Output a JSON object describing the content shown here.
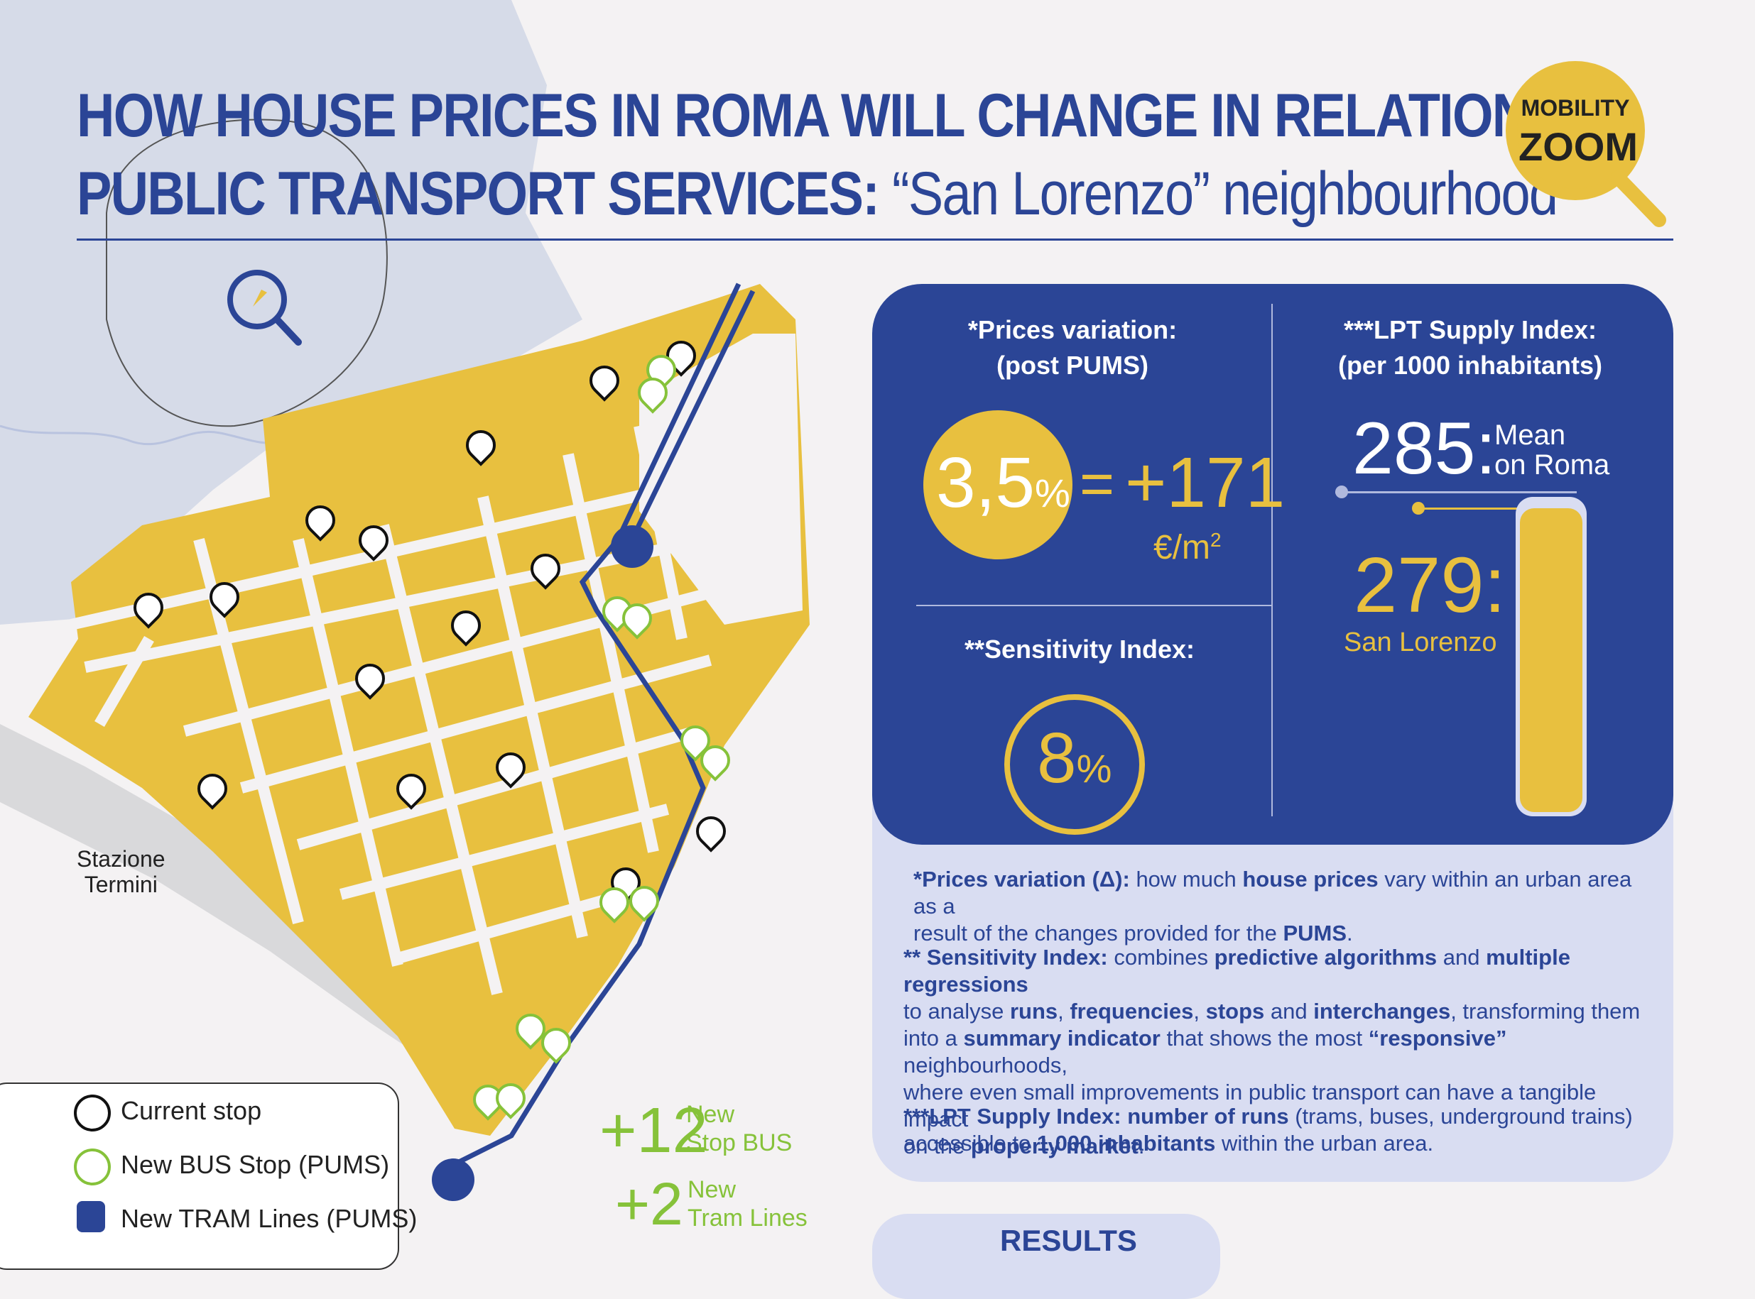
{
  "header": {
    "title_line1": "HOW HOUSE PRICES IN ROMA WILL CHANGE IN RELATION TO",
    "title_line2_bold": "PUBLIC TRANSPORT SERVICES:",
    "title_line2_rest": "“San Lorenzo” neighbourhood",
    "logo_line1": "MOBILITY",
    "logo_line2": "ZOOM"
  },
  "map": {
    "station_label_1": "Stazione",
    "station_label_2": "Termini"
  },
  "stats": {
    "prices_label_1": "*Prices variation:",
    "prices_label_2": "(post PUMS)",
    "prices_percent": "3,5",
    "percent_sign": "%",
    "equals": "=",
    "prices_value": "+171",
    "prices_unit": "€/m",
    "prices_unit_sup": "2",
    "sensitivity_label": "**Sensitivity Index:",
    "sensitivity_value": "8",
    "lpt_label_1": "***LPT Supply Index:",
    "lpt_label_2": "(per 1000 inhabitants)",
    "mean_value": "285:",
    "mean_label_1": "Mean",
    "mean_label_2": "on Roma",
    "sl_value": "279:",
    "sl_label": "San Lorenzo"
  },
  "definitions": {
    "d1_b1": "*Prices variation (Δ):",
    "d1_t1": " how much ",
    "d1_b2": "house prices",
    "d1_t2": " vary within an urban area as a",
    "d1_t3": "result of the changes provided for the ",
    "d1_b3": "PUMS",
    "d1_t4": ".",
    "d2_b1": "** Sensitivity Index:",
    "d2_t1": "  combines ",
    "d2_b2": "predictive algorithms",
    "d2_t2": " and ",
    "d2_b3": "multiple regressions",
    "d2_t3": "to analyse ",
    "d2_b4": "runs",
    "d2_t4": ", ",
    "d2_b5": "frequencies",
    "d2_t5": ", ",
    "d2_b6": "stops",
    "d2_t6": " and ",
    "d2_b7": "interchanges",
    "d2_t7": ", transforming them",
    "d2_t8": "into a ",
    "d2_b8": "summary indicator",
    "d2_t9": " that shows the most ",
    "d2_b9": "“responsive”",
    "d2_t10": " neighbourhoods,",
    "d2_t11": "where even small improvements in public transport can have a tangible impact",
    "d2_t12": "on the ",
    "d2_b10": "property market",
    "d2_t13": ".",
    "d3_b1": "***LPT Supply Index:",
    "d3_t1": " ",
    "d3_b2": "number of runs",
    "d3_t2": " (trams, buses, underground trains)",
    "d3_t3": "accessible to ",
    "d3_b3": "1,000 inhabitants",
    "d3_t4": " within the urban area."
  },
  "results_label": "RESULTS",
  "legend": {
    "current": "Current stop",
    "new_bus": "New BUS Stop (PUMS)",
    "new_tram": "New TRAM Lines (PUMS)"
  },
  "additions": {
    "bus_count": "+12",
    "bus_label_1": "New",
    "bus_label_2": "Stop BUS",
    "tram_count": "+2",
    "tram_label_1": "New",
    "tram_label_2": "Tram Lines"
  },
  "colors": {
    "navy": "#2b4596",
    "yellow": "#e8c03f",
    "green": "#86c23a",
    "light_blue": "#d9ddf2"
  },
  "icons": {
    "current_stop": "bus-pin-icon",
    "new_bus_stop": "green-bus-pin-icon",
    "tram": "tram-icon",
    "search": "magnifier-icon"
  }
}
